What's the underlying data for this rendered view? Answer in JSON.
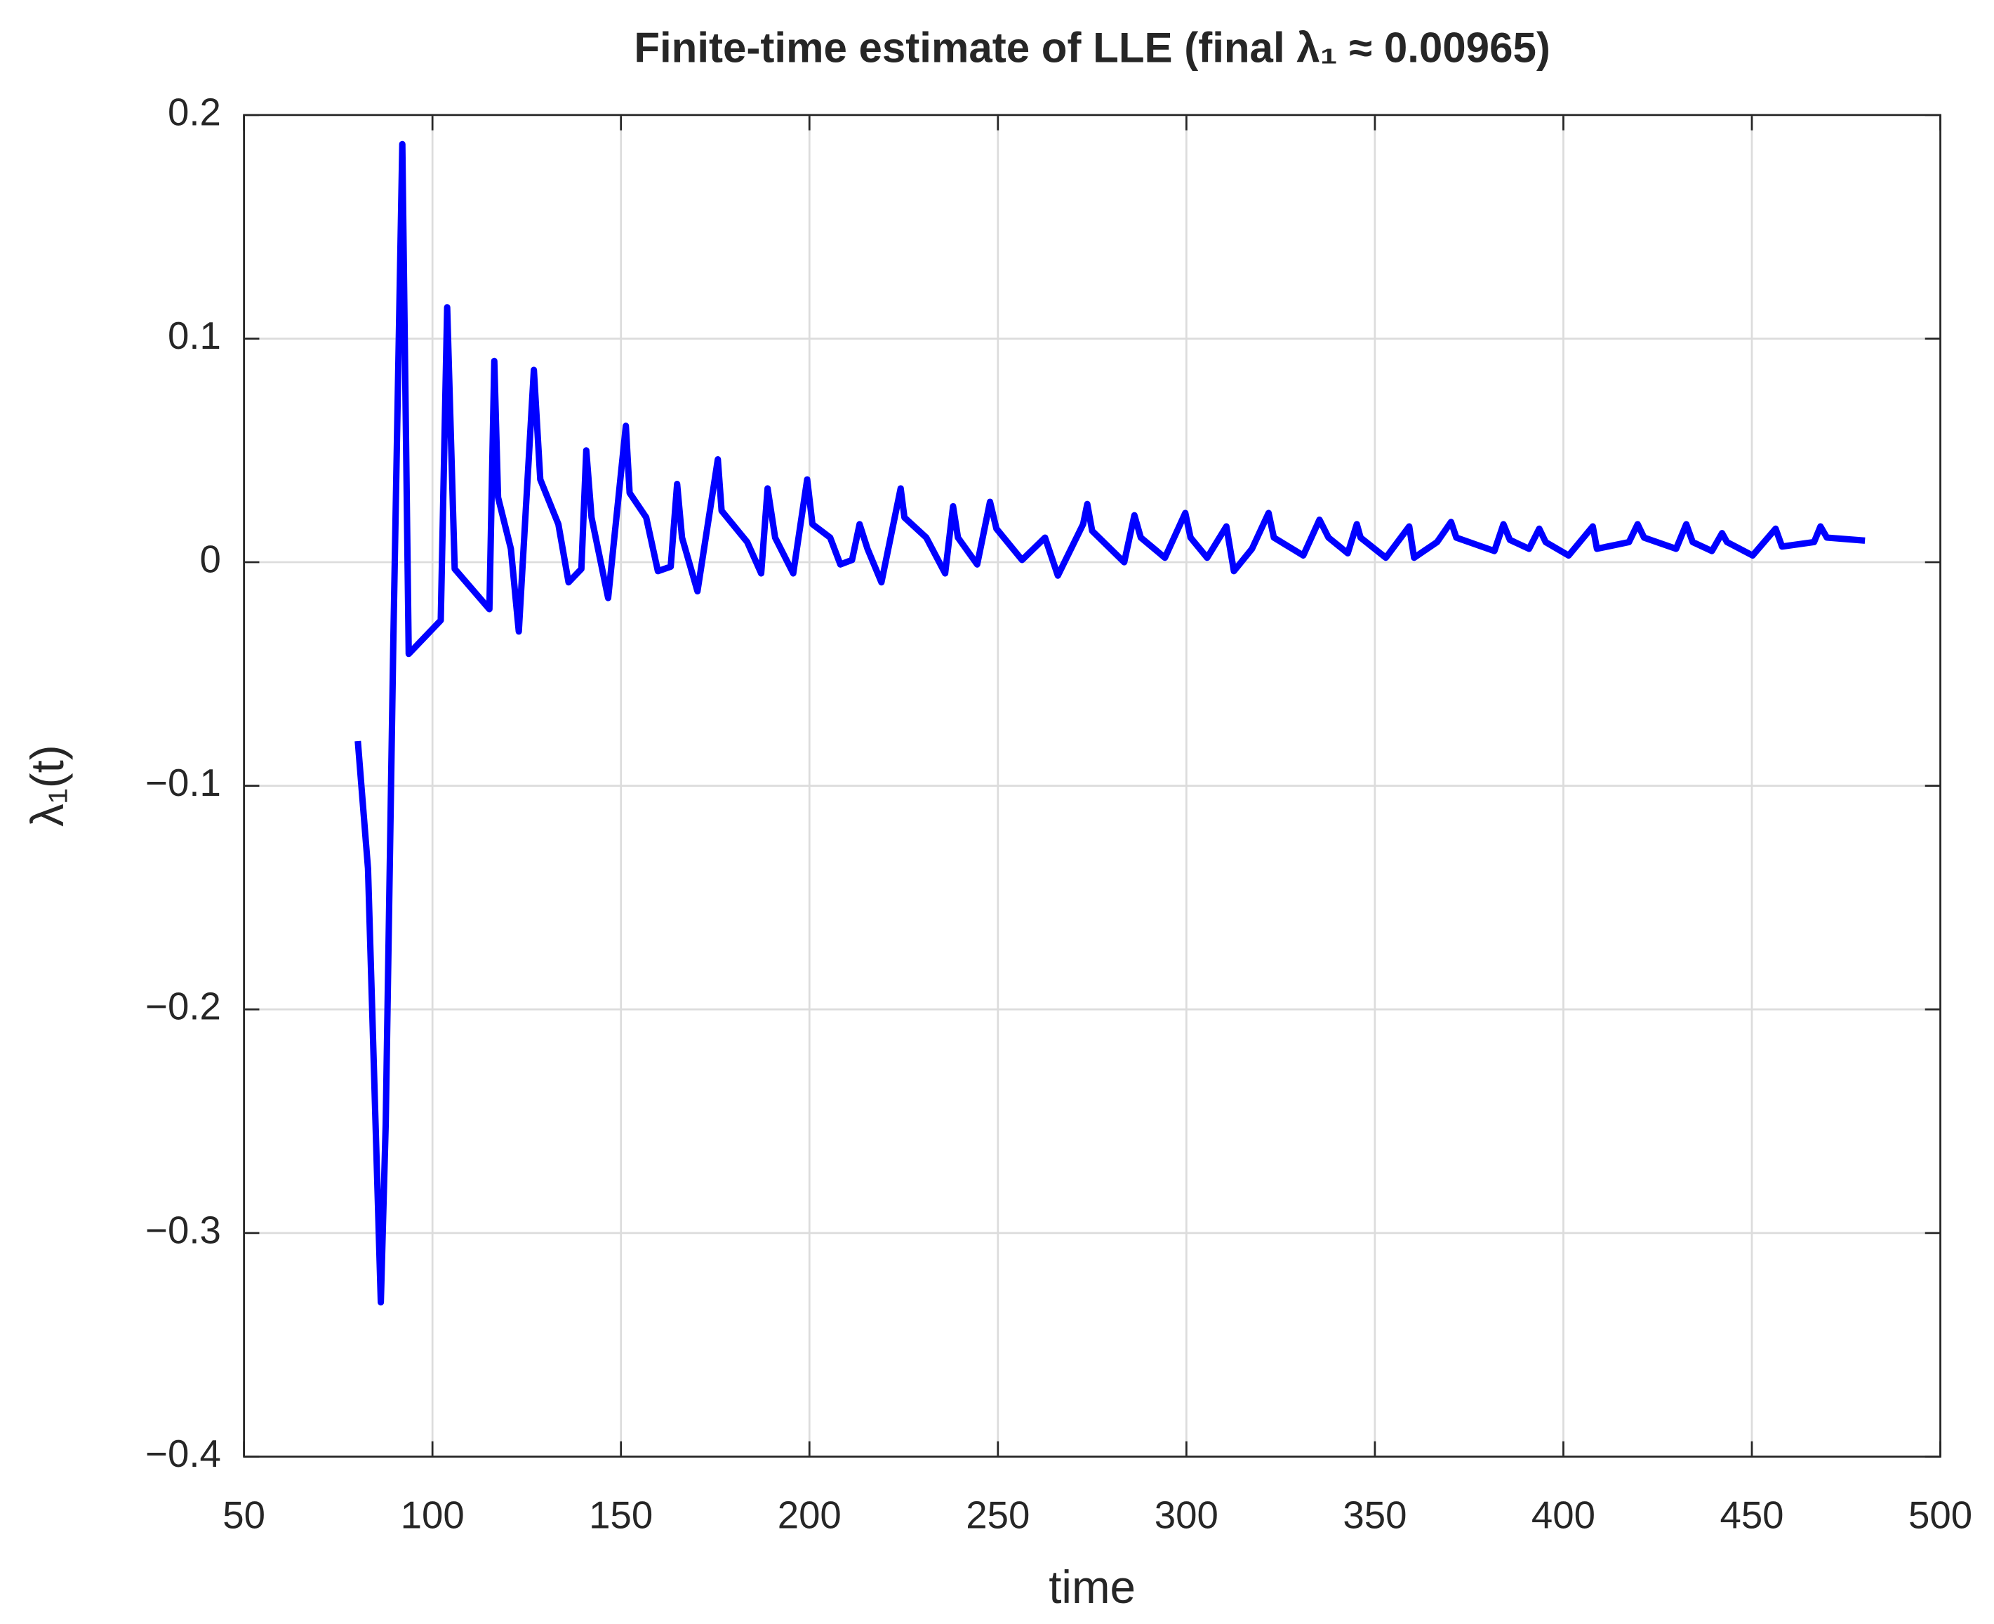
{
  "chart_data": {
    "type": "line",
    "title": "Finite-time estimate of LLE (final λ₁ ≈ 0.00965)",
    "xlabel": "time",
    "ylabel": "λ₁(t)",
    "color": "#0000ff",
    "grid": true,
    "xlim": [
      50,
      500
    ],
    "xticks": [
      50,
      100,
      150,
      200,
      250,
      300,
      350,
      400,
      450,
      500
    ],
    "ylim": [
      -0.4,
      0.2
    ],
    "yticks": [
      {
        "value": -0.4,
        "label": "−0.4"
      },
      {
        "value": -0.3,
        "label": "−0.3"
      },
      {
        "value": -0.2,
        "label": "−0.2"
      },
      {
        "value": -0.1,
        "label": "−0.1"
      },
      0,
      0.1,
      0.2
    ],
    "x": [
      80.2,
      82.9,
      86.3,
      87.6,
      89.6,
      92,
      93.7,
      102.2,
      103.9,
      105.9,
      115.1,
      116.4,
      117.4,
      120.8,
      122.9,
      126.9,
      128.6,
      133.4,
      136.1,
      139.5,
      140.8,
      142.2,
      146.6,
      151.3,
      152.3,
      156.7,
      159.8,
      163.2,
      164.9,
      166.2,
      170.3,
      175.7,
      176.7,
      183.5,
      187.2,
      188.9,
      190.9,
      195.7,
      199.4,
      200.8,
      205.5,
      208.2,
      211.3,
      213.3,
      215.4,
      219.1,
      224.2,
      225.2,
      231,
      236,
      238.1,
      239.4,
      244.5,
      247.9,
      249.6,
      256.4,
      262.5,
      265.9,
      272.6,
      273.7,
      275,
      283.5,
      286.2,
      287.9,
      294.3,
      299.7,
      301.1,
      305.5,
      310.6,
      312.6,
      317.4,
      321.8,
      323.2,
      331,
      335.3,
      337.7,
      342.8,
      345.2,
      346.2,
      352.9,
      359.1,
      360.4,
      366.5,
      370.2,
      371.6,
      381.7,
      384.1,
      385.8,
      390.9,
      393.6,
      395.3,
      401.4,
      407.8,
      408.9,
      417.4,
      419.7,
      421.4,
      429.9,
      432.6,
      434.3,
      439.4,
      442.1,
      443.4,
      450.2,
      456.3,
      458,
      466.5,
      468.2,
      469.9,
      480
    ],
    "values": [
      -0.08,
      -0.137,
      -0.331,
      -0.251,
      -0.037,
      0.187,
      -0.041,
      -0.026,
      0.114,
      -0.003,
      -0.021,
      0.09,
      0.029,
      0.006,
      -0.031,
      0.086,
      0.037,
      0.017,
      -0.009,
      -0.003,
      0.05,
      0.02,
      -0.016,
      0.061,
      0.031,
      0.02,
      -0.004,
      -0.002,
      0.035,
      0.011,
      -0.013,
      0.046,
      0.023,
      0.009,
      -0.005,
      0.033,
      0.011,
      -0.005,
      0.037,
      0.017,
      0.011,
      -0.001,
      0.001,
      0.017,
      0.006,
      -0.009,
      0.033,
      0.02,
      0.011,
      -0.005,
      0.025,
      0.011,
      -0.001,
      0.027,
      0.015,
      0.001,
      0.011,
      -0.006,
      0.017,
      0.026,
      0.014,
      0,
      0.021,
      0.011,
      0.002,
      0.022,
      0.011,
      0.002,
      0.016,
      -0.004,
      0.006,
      0.022,
      0.011,
      0.003,
      0.019,
      0.011,
      0.004,
      0.017,
      0.011,
      0.002,
      0.016,
      0.002,
      0.009,
      0.018,
      0.011,
      0.005,
      0.017,
      0.01,
      0.006,
      0.015,
      0.009,
      0.003,
      0.016,
      0.006,
      0.009,
      0.017,
      0.011,
      0.006,
      0.017,
      0.009,
      0.005,
      0.013,
      0.009,
      0.003,
      0.015,
      0.007,
      0.009,
      0.016,
      0.011,
      0.00965
    ]
  }
}
